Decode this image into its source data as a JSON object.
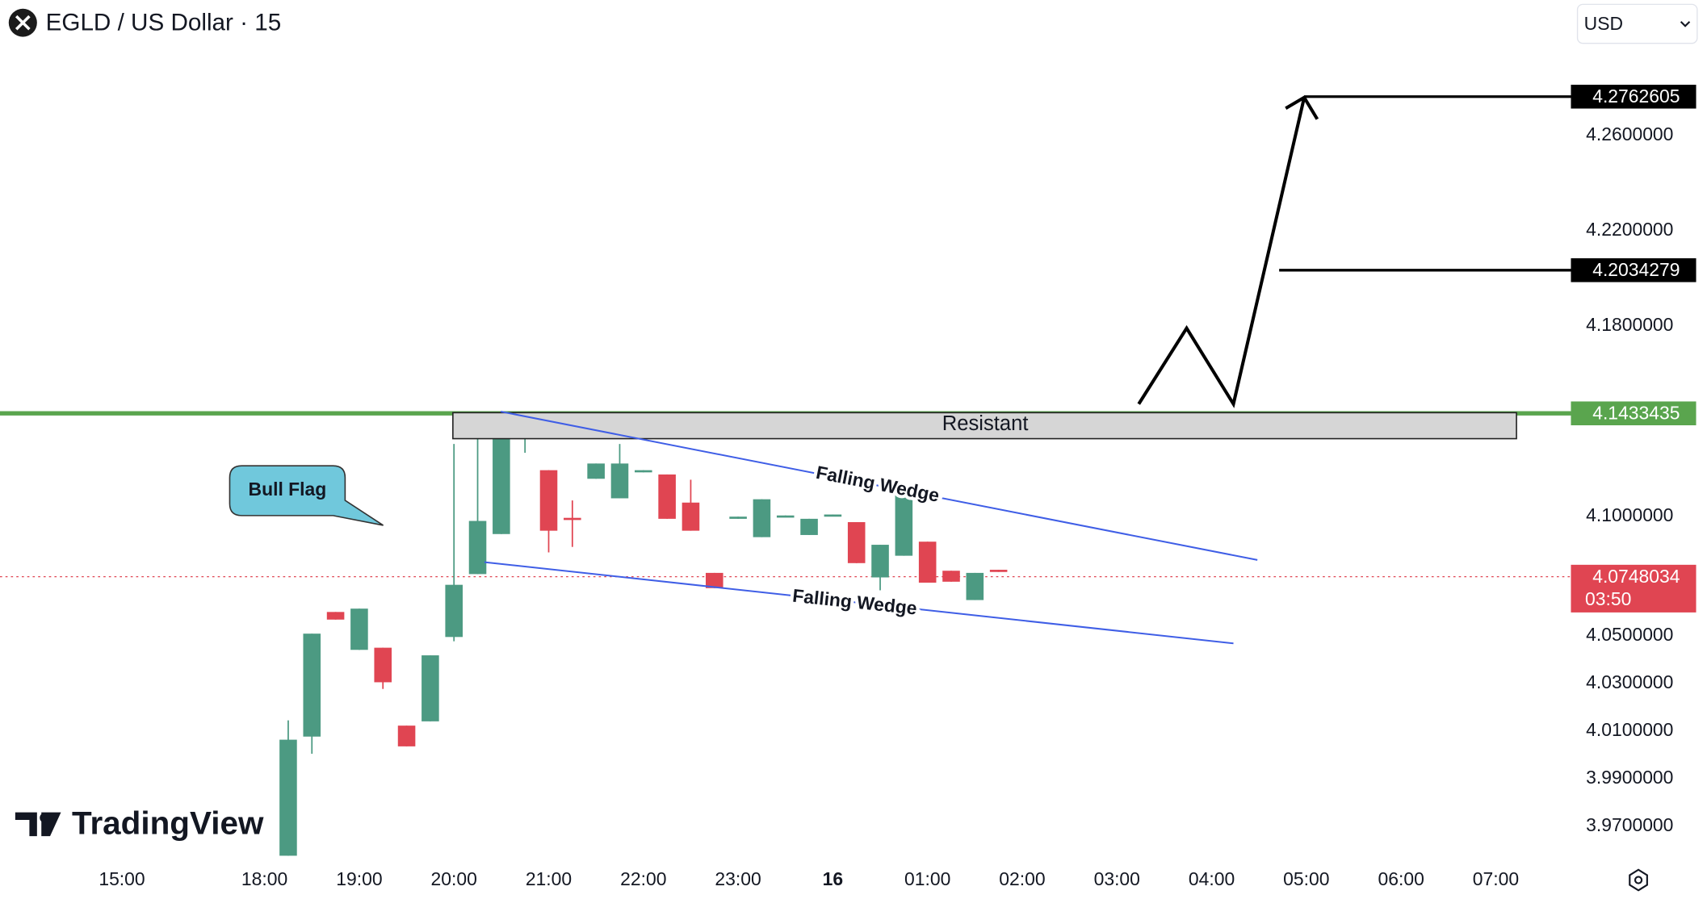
{
  "chart_data": {
    "type": "candlestick",
    "title": "EGLD / US Dollar · 15",
    "currency": "USD",
    "watermark": "TradingView",
    "x": [
      "18:15",
      "18:30",
      "18:45",
      "19:00",
      "19:15",
      "19:30",
      "19:45",
      "20:00",
      "20:15",
      "20:30",
      "20:45",
      "21:00",
      "21:15",
      "21:30",
      "21:45",
      "22:00",
      "22:15",
      "22:30",
      "22:45",
      "23:00",
      "23:15",
      "23:30",
      "23:45",
      "00:00",
      "00:15",
      "00:30",
      "00:45",
      "01:00",
      "01:15",
      "01:30",
      "01:45"
    ],
    "open": [
      3.9577,
      4.0077,
      4.06,
      4.0441,
      4.045,
      4.0123,
      4.0141,
      4.0495,
      4.0759,
      4.0927,
      4.1373,
      4.1195,
      4.0995,
      4.1159,
      4.1077,
      4.1186,
      4.1177,
      4.1059,
      4.0764,
      4.0991,
      4.0914,
      4.1,
      4.0923,
      4.1005,
      4.0977,
      4.0745,
      4.0836,
      4.0895,
      4.0773,
      4.065,
      4.0777
    ],
    "high": [
      4.0145,
      4.0509,
      4.06,
      4.0614,
      4.045,
      4.0123,
      4.0418,
      4.1305,
      4.1327,
      4.1441,
      4.14,
      4.1195,
      4.1068,
      4.1223,
      4.1305,
      4.1195,
      4.1177,
      4.1155,
      4.0764,
      4.1,
      4.1073,
      4.1005,
      4.0991,
      4.1009,
      4.0977,
      4.0882,
      4.1123,
      4.0895,
      4.0773,
      4.0764,
      4.0777
    ],
    "low": [
      3.9577,
      4.0005,
      4.0568,
      4.0441,
      4.0277,
      4.0036,
      4.0141,
      4.0477,
      4.0759,
      4.0927,
      4.1268,
      4.085,
      4.0873,
      4.1159,
      4.1077,
      4.1186,
      4.0991,
      4.0941,
      4.07,
      4.0991,
      4.0914,
      4.1,
      4.0923,
      4.1005,
      4.0805,
      4.0691,
      4.0836,
      4.0723,
      4.0727,
      4.065,
      4.0768
    ],
    "close": [
      4.0064,
      4.0509,
      4.0568,
      4.0614,
      4.0305,
      4.0036,
      4.0418,
      4.0714,
      4.0982,
      4.1409,
      4.14,
      4.0941,
      4.0986,
      4.1223,
      4.1223,
      4.1195,
      4.0991,
      4.0941,
      4.07,
      4.1,
      4.1073,
      4.1005,
      4.0991,
      4.1009,
      4.0805,
      4.0882,
      4.11,
      4.0723,
      4.0727,
      4.0764,
      4.0768
    ],
    "up_color": "#4c9a82",
    "down_color": "#e04552",
    "ylim": [
      3.9577,
      4.3
    ],
    "yticks": [
      {
        "value": 3.97,
        "label": "3.9700000"
      },
      {
        "value": 3.99,
        "label": "3.9900000"
      },
      {
        "value": 4.01,
        "label": "4.0100000"
      },
      {
        "value": 4.03,
        "label": "4.0300000"
      },
      {
        "value": 4.05,
        "label": "4.0500000"
      },
      {
        "value": 4.1,
        "label": "4.1000000"
      },
      {
        "value": 4.18,
        "label": "4.1800000"
      },
      {
        "value": 4.22,
        "label": "4.2200000"
      },
      {
        "value": 4.26,
        "label": "4.2600000"
      }
    ],
    "xticks": [
      "15:00",
      "18:00",
      "19:00",
      "20:00",
      "21:00",
      "22:00",
      "23:00",
      "16",
      "01:00",
      "02:00",
      "03:00",
      "04:00",
      "05:00",
      "06:00",
      "07:00"
    ],
    "price_lines": [
      {
        "value": 4.2762605,
        "color": "#000000"
      },
      {
        "value": 4.2034279,
        "color": "#000000"
      },
      {
        "value": 4.1433435,
        "color": "#5aa54e"
      }
    ],
    "last_price": 4.0748034,
    "countdown": "03:50",
    "last_color": "#e04552",
    "annotations": [
      "Resistant",
      "Falling Wedge",
      "Falling Wedge",
      "Bull Flag"
    ]
  }
}
